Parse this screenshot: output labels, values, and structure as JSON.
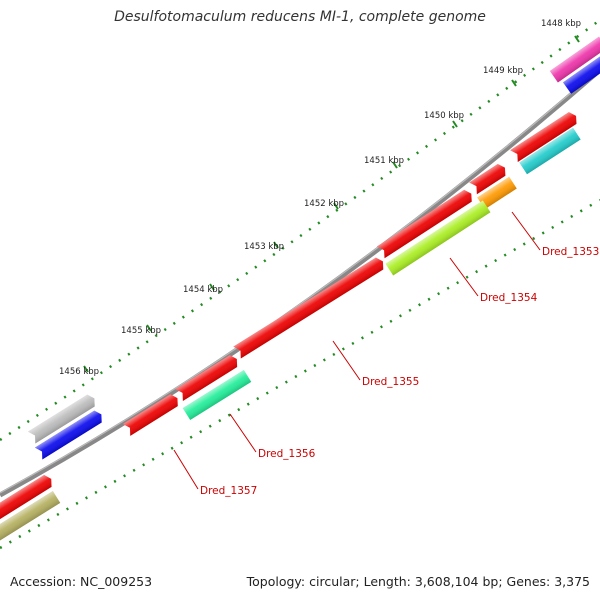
{
  "title": "Desulfotomaculum reducens MI-1, complete genome",
  "accession_text": "Accession: NC_009253",
  "summary_text": "Topology: circular; Length: 3,608,104 bp; Genes: 3,375",
  "kbp_ticks": [
    {
      "label": "1448 kbp"
    },
    {
      "label": "1449 kbp"
    },
    {
      "label": "1450 kbp"
    },
    {
      "label": "1451 kbp"
    },
    {
      "label": "1452 kbp"
    },
    {
      "label": "1453 kbp"
    },
    {
      "label": "1454 kbp"
    },
    {
      "label": "1455 kbp"
    },
    {
      "label": "1456 kbp"
    }
  ],
  "gene_labels": [
    {
      "name": "Dred_1353",
      "color": "#cc0000"
    },
    {
      "name": "Dred_1354",
      "color": "#cc0000"
    },
    {
      "name": "Dred_1355",
      "color": "#cc0000"
    },
    {
      "name": "Dred_1356",
      "color": "#cc0000"
    },
    {
      "name": "Dred_1357",
      "color": "#cc0000"
    }
  ],
  "colors": {
    "backbone": "#777777",
    "tick_dots": "#228B22",
    "red": "#ee0000",
    "magenta": "#ee33aa",
    "blue": "#0a0aee",
    "cyan": "#22cccc",
    "orange": "#ff9900",
    "lime": "#aaee22",
    "green": "#22ee99",
    "silver": "#bbbbbb",
    "khaki": "#b5b060"
  }
}
